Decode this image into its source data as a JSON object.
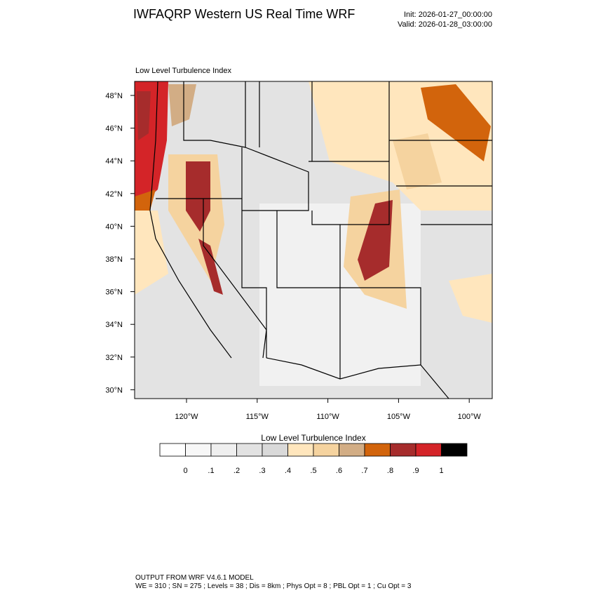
{
  "header": {
    "title": "IWFAQRP Western US Real Time WRF",
    "init": "Init: 2026-01-27_00:00:00",
    "valid": "Valid: 2026-01-28_03:00:00"
  },
  "map": {
    "subtitle": "Low Level Turbulence Index",
    "lat_labels": [
      "48°N",
      "46°N",
      "44°N",
      "42°N",
      "40°N",
      "38°N",
      "36°N",
      "34°N",
      "32°N",
      "30°N"
    ],
    "lon_labels": [
      "120°W",
      "115°W",
      "110°W",
      "105°W",
      "100°W"
    ]
  },
  "colorbar": {
    "title": "Low Level Turbulence Index",
    "colors": [
      "#ffffff",
      "#f7f7f7",
      "#efefef",
      "#e2e2e2",
      "#d9d9d9",
      "#ffe6bd",
      "#f5d39f",
      "#d2ad85",
      "#d2640c",
      "#a62c2c",
      "#d42428",
      "#000000"
    ],
    "labels": [
      "0",
      ".1",
      ".2",
      ".3",
      ".4",
      ".5",
      ".6",
      ".7",
      ".8",
      ".9",
      "1"
    ]
  },
  "footer": {
    "line1": "OUTPUT FROM WRF V4.6.1 MODEL",
    "line2": "WE = 310 ; SN = 275 ; Levels = 38 ; Dis = 8km ; Phys Opt = 8 ; PBL Opt = 1 ; Cu Opt = 3"
  }
}
